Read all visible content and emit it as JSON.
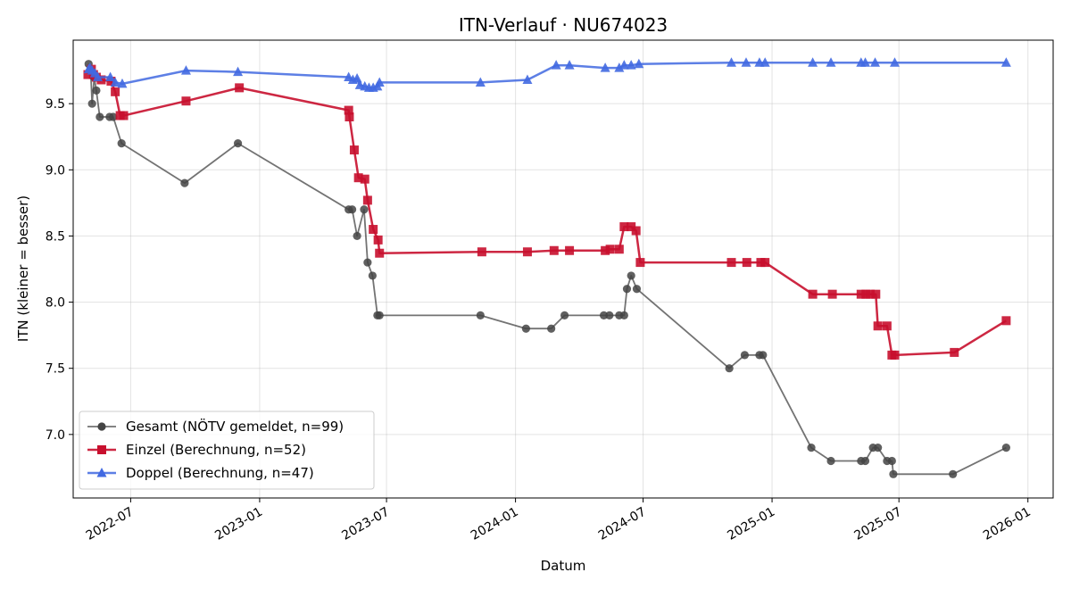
{
  "chart_data": {
    "type": "line",
    "title": "ITN-Verlauf · NU674023",
    "xlabel": "Datum",
    "ylabel": "ITN  (kleiner = besser)",
    "xlim": [
      "2022-04-10",
      "2026-02-06"
    ],
    "ylim": [
      6.52,
      9.98
    ],
    "y_ticks": [
      7.0,
      7.5,
      8.0,
      8.5,
      9.0,
      9.5
    ],
    "x_ticks": [
      {
        "date": "2022-07-01",
        "label": "2022-07"
      },
      {
        "date": "2023-01-01",
        "label": "2023-01"
      },
      {
        "date": "2023-07-01",
        "label": "2023-07"
      },
      {
        "date": "2024-01-01",
        "label": "2024-01"
      },
      {
        "date": "2024-07-01",
        "label": "2024-07"
      },
      {
        "date": "2025-01-01",
        "label": "2025-01"
      },
      {
        "date": "2025-07-01",
        "label": "2025-07"
      },
      {
        "date": "2026-01-01",
        "label": "2026-01"
      }
    ],
    "grid": true,
    "legend_position": "lower-left",
    "series": [
      {
        "name": "Gesamt (NÖTV gemeldet, n=99)",
        "color": "#444444",
        "marker": "circle",
        "line_opacity": 0.75,
        "points": [
          [
            "2022-05-02",
            9.8
          ],
          [
            "2022-05-05",
            9.75
          ],
          [
            "2022-05-07",
            9.5
          ],
          [
            "2022-05-10",
            9.7
          ],
          [
            "2022-05-13",
            9.6
          ],
          [
            "2022-05-18",
            9.4
          ],
          [
            "2022-06-01",
            9.4
          ],
          [
            "2022-06-06",
            9.4
          ],
          [
            "2022-06-18",
            9.2
          ],
          [
            "2022-09-16",
            8.9
          ],
          [
            "2022-12-01",
            9.2
          ],
          [
            "2023-05-08",
            8.7
          ],
          [
            "2023-05-13",
            8.7
          ],
          [
            "2023-05-20",
            8.5
          ],
          [
            "2023-05-30",
            8.7
          ],
          [
            "2023-06-04",
            8.3
          ],
          [
            "2023-06-11",
            8.2
          ],
          [
            "2023-06-18",
            7.9
          ],
          [
            "2023-06-21",
            7.9
          ],
          [
            "2023-11-12",
            7.9
          ],
          [
            "2024-01-16",
            7.8
          ],
          [
            "2024-02-21",
            7.8
          ],
          [
            "2024-03-11",
            7.9
          ],
          [
            "2024-05-06",
            7.9
          ],
          [
            "2024-05-14",
            7.9
          ],
          [
            "2024-05-28",
            7.9
          ],
          [
            "2024-06-04",
            7.9
          ],
          [
            "2024-06-08",
            8.1
          ],
          [
            "2024-06-14",
            8.2
          ],
          [
            "2024-06-22",
            8.1
          ],
          [
            "2024-11-01",
            7.5
          ],
          [
            "2024-11-23",
            7.6
          ],
          [
            "2024-12-14",
            7.6
          ],
          [
            "2024-12-19",
            7.6
          ],
          [
            "2025-02-26",
            6.9
          ],
          [
            "2025-03-26",
            6.8
          ],
          [
            "2025-05-08",
            6.8
          ],
          [
            "2025-05-14",
            6.8
          ],
          [
            "2025-05-25",
            6.9
          ],
          [
            "2025-06-01",
            6.9
          ],
          [
            "2025-06-14",
            6.8
          ],
          [
            "2025-06-21",
            6.8
          ],
          [
            "2025-06-23",
            6.7
          ],
          [
            "2025-09-16",
            6.7
          ],
          [
            "2025-12-01",
            6.9
          ]
        ]
      },
      {
        "name": "Einzel (Berechnung, n=52)",
        "color": "#C8102E",
        "marker": "square",
        "line_opacity": 0.9,
        "points": [
          [
            "2022-05-01",
            9.72
          ],
          [
            "2022-05-06",
            9.76
          ],
          [
            "2022-05-09",
            9.72
          ],
          [
            "2022-05-13",
            9.7
          ],
          [
            "2022-05-20",
            9.68
          ],
          [
            "2022-06-03",
            9.67
          ],
          [
            "2022-06-09",
            9.59
          ],
          [
            "2022-06-16",
            9.41
          ],
          [
            "2022-06-21",
            9.41
          ],
          [
            "2022-09-18",
            9.52
          ],
          [
            "2022-12-03",
            9.62
          ],
          [
            "2023-05-08",
            9.45
          ],
          [
            "2023-05-09",
            9.4
          ],
          [
            "2023-05-16",
            9.15
          ],
          [
            "2023-05-22",
            8.94
          ],
          [
            "2023-05-31",
            8.93
          ],
          [
            "2023-06-04",
            8.77
          ],
          [
            "2023-06-12",
            8.55
          ],
          [
            "2023-06-19",
            8.47
          ],
          [
            "2023-06-21",
            8.37
          ],
          [
            "2023-11-14",
            8.38
          ],
          [
            "2024-01-18",
            8.38
          ],
          [
            "2024-02-25",
            8.39
          ],
          [
            "2024-03-18",
            8.39
          ],
          [
            "2024-05-08",
            8.39
          ],
          [
            "2024-05-15",
            8.4
          ],
          [
            "2024-05-28",
            8.4
          ],
          [
            "2024-06-04",
            8.57
          ],
          [
            "2024-06-14",
            8.57
          ],
          [
            "2024-06-21",
            8.54
          ],
          [
            "2024-06-27",
            8.3
          ],
          [
            "2024-11-04",
            8.3
          ],
          [
            "2024-11-26",
            8.3
          ],
          [
            "2024-12-16",
            8.3
          ],
          [
            "2024-12-22",
            8.3
          ],
          [
            "2025-02-28",
            8.06
          ],
          [
            "2025-03-28",
            8.06
          ],
          [
            "2025-05-08",
            8.06
          ],
          [
            "2025-05-15",
            8.06
          ],
          [
            "2025-05-21",
            8.06
          ],
          [
            "2025-05-29",
            8.06
          ],
          [
            "2025-06-01",
            7.82
          ],
          [
            "2025-06-14",
            7.82
          ],
          [
            "2025-06-21",
            7.6
          ],
          [
            "2025-06-25",
            7.6
          ],
          [
            "2025-09-18",
            7.62
          ],
          [
            "2025-12-01",
            7.86
          ]
        ]
      },
      {
        "name": "Doppel (Berechnung, n=47)",
        "color": "#4169E1",
        "marker": "triangle",
        "line_opacity": 0.85,
        "points": [
          [
            "2022-05-02",
            9.76
          ],
          [
            "2022-05-04",
            9.77
          ],
          [
            "2022-05-07",
            9.75
          ],
          [
            "2022-05-11",
            9.73
          ],
          [
            "2022-05-15",
            9.7
          ],
          [
            "2022-06-02",
            9.7
          ],
          [
            "2022-06-09",
            9.66
          ],
          [
            "2022-06-19",
            9.65
          ],
          [
            "2022-09-18",
            9.75
          ],
          [
            "2022-12-01",
            9.74
          ],
          [
            "2023-05-08",
            9.7
          ],
          [
            "2023-05-14",
            9.68
          ],
          [
            "2023-05-20",
            9.69
          ],
          [
            "2023-05-24",
            9.64
          ],
          [
            "2023-05-31",
            9.63
          ],
          [
            "2023-06-06",
            9.62
          ],
          [
            "2023-06-12",
            9.62
          ],
          [
            "2023-06-18",
            9.63
          ],
          [
            "2023-06-21",
            9.66
          ],
          [
            "2023-11-12",
            9.66
          ],
          [
            "2024-01-18",
            9.68
          ],
          [
            "2024-02-28",
            9.79
          ],
          [
            "2024-03-18",
            9.79
          ],
          [
            "2024-05-08",
            9.77
          ],
          [
            "2024-05-28",
            9.77
          ],
          [
            "2024-06-04",
            9.79
          ],
          [
            "2024-06-14",
            9.79
          ],
          [
            "2024-06-25",
            9.8
          ],
          [
            "2024-11-04",
            9.81
          ],
          [
            "2024-11-25",
            9.81
          ],
          [
            "2024-12-14",
            9.81
          ],
          [
            "2024-12-22",
            9.81
          ],
          [
            "2025-02-28",
            9.81
          ],
          [
            "2025-03-26",
            9.81
          ],
          [
            "2025-05-08",
            9.81
          ],
          [
            "2025-05-14",
            9.81
          ],
          [
            "2025-05-28",
            9.81
          ],
          [
            "2025-06-25",
            9.81
          ],
          [
            "2025-12-01",
            9.81
          ]
        ]
      }
    ]
  }
}
